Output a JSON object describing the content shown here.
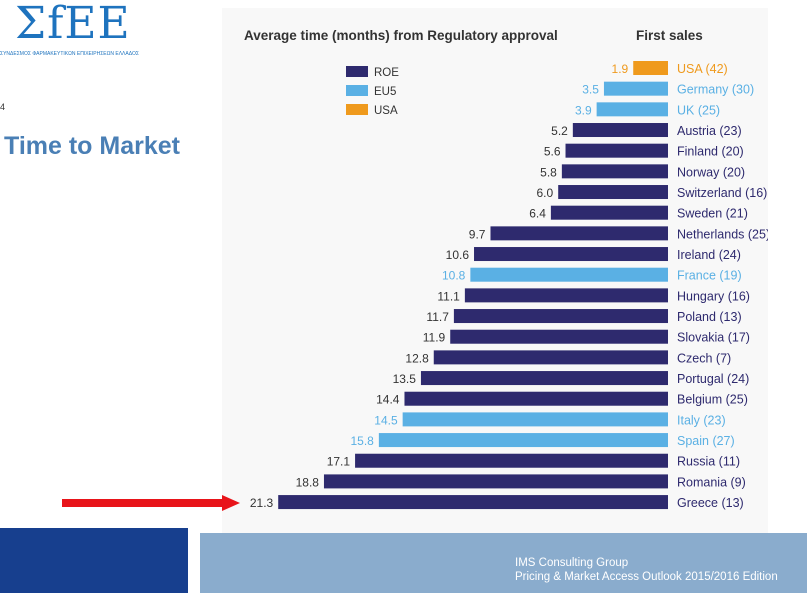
{
  "header": {
    "logo": "ΣfEE",
    "logo_subtitle": "ΣΥΝΔΕΣΜΟΣ ΦΑΡΜΑΚΕΥΤΙΚΩΝ ΕΠΙΧΕΙΡΗΣΕΩΝ ΕΛΛΑΔΟΣ",
    "page_number": "4",
    "title": "Time to Market"
  },
  "footer": {
    "source_line1": "IMS Consulting Group",
    "source_line2": "Pricing & Market Access Outlook 2015/2016 Edition"
  },
  "colors": {
    "ROE": "#2e2a6e",
    "EU5": "#5ab0e4",
    "USA": "#ef9a1d",
    "arrow": "#e8141a"
  },
  "chart_data": {
    "type": "bar",
    "orientation": "horizontal",
    "title": "Average time (months) from Regulatory approval",
    "title_right": "First sales",
    "legend": [
      "ROE",
      "EU5",
      "USA"
    ],
    "legend_placement": "top-left",
    "categories": [
      "USA (42)",
      "Germany (30)",
      "UK (25)",
      "Austria (23)",
      "Finland (20)",
      "Norway (20)",
      "Switzerland (16)",
      "Sweden (21)",
      "Netherlands (25)",
      "Ireland (24)",
      "France (19)",
      "Hungary (16)",
      "Poland (13)",
      "Slovakia (17)",
      "Czech (7)",
      "Portugal (24)",
      "Belgium (25)",
      "Italy (23)",
      "Spain (27)",
      "Russia (11)",
      "Romania (9)",
      "Greece (13)"
    ],
    "values": [
      1.9,
      3.5,
      3.9,
      5.2,
      5.6,
      5.8,
      6.0,
      6.4,
      9.7,
      10.6,
      10.8,
      11.1,
      11.7,
      11.9,
      12.8,
      13.5,
      14.4,
      14.5,
      15.8,
      17.1,
      18.8,
      21.3
    ],
    "labels": [
      "1.9",
      "3.5",
      "3.9",
      "5.2",
      "5.6",
      "5.8",
      "6.0",
      "6.4",
      "9.7",
      "10.6",
      "10.8",
      "11.1",
      "11.7",
      "11.9",
      "12.8",
      "13.5",
      "14.4",
      "14.5",
      "15.8",
      "17.1",
      "18.8",
      "21.3"
    ],
    "groups": [
      "USA",
      "EU5",
      "EU5",
      "ROE",
      "ROE",
      "ROE",
      "ROE",
      "ROE",
      "ROE",
      "ROE",
      "EU5",
      "ROE",
      "ROE",
      "ROE",
      "ROE",
      "ROE",
      "ROE",
      "EU5",
      "EU5",
      "ROE",
      "ROE",
      "ROE"
    ],
    "highlight": "Greece (13)"
  }
}
